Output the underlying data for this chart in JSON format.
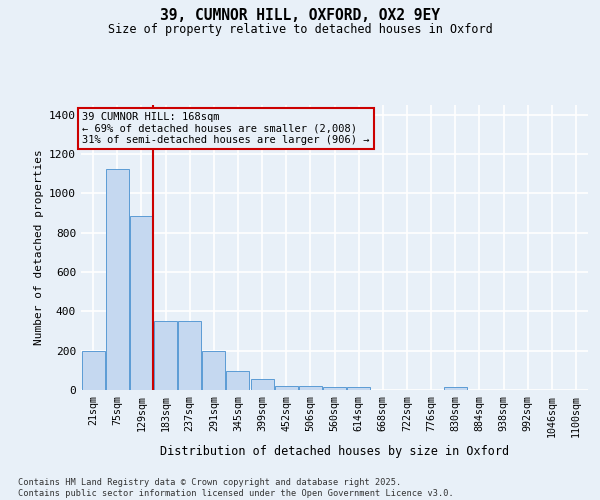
{
  "title_line1": "39, CUMNOR HILL, OXFORD, OX2 9EY",
  "title_line2": "Size of property relative to detached houses in Oxford",
  "xlabel": "Distribution of detached houses by size in Oxford",
  "ylabel": "Number of detached properties",
  "categories": [
    "21sqm",
    "75sqm",
    "129sqm",
    "183sqm",
    "237sqm",
    "291sqm",
    "345sqm",
    "399sqm",
    "452sqm",
    "506sqm",
    "560sqm",
    "614sqm",
    "668sqm",
    "722sqm",
    "776sqm",
    "830sqm",
    "884sqm",
    "938sqm",
    "992sqm",
    "1046sqm",
    "1100sqm"
  ],
  "values": [
    197,
    1125,
    885,
    352,
    352,
    197,
    95,
    57,
    22,
    22,
    15,
    15,
    0,
    0,
    0,
    15,
    0,
    0,
    0,
    0,
    0
  ],
  "bar_color": "#c5d8f0",
  "bar_edge_color": "#5b9bd5",
  "vline_pos": 2.5,
  "vline_color": "#cc0000",
  "annotation_text": "39 CUMNOR HILL: 168sqm\n← 69% of detached houses are smaller (2,008)\n31% of semi-detached houses are larger (906) →",
  "annot_edge_color": "#cc0000",
  "ylim": [
    0,
    1450
  ],
  "yticks": [
    0,
    200,
    400,
    600,
    800,
    1000,
    1200,
    1400
  ],
  "bg_color": "#e8f0f8",
  "grid_color": "#ffffff",
  "footer": "Contains HM Land Registry data © Crown copyright and database right 2025.\nContains public sector information licensed under the Open Government Licence v3.0."
}
